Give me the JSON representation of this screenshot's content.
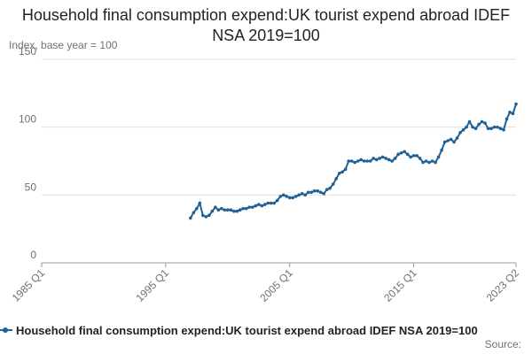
{
  "chart_data": {
    "type": "line",
    "title": "Household final consumption expend:UK tourist expend abroad IDEF NSA 2019=100",
    "y_label": "Index, base year = 100",
    "source": "Source:",
    "categories": [
      "1985 Q1",
      null,
      null,
      null,
      null,
      null,
      null,
      null,
      null,
      null,
      null,
      null,
      null,
      null,
      null,
      null,
      null,
      null,
      null,
      null,
      null,
      null,
      null,
      null,
      null,
      null,
      null,
      null,
      null,
      null,
      null,
      null,
      null,
      null,
      null,
      null,
      null,
      null,
      null,
      null,
      "1995 Q1",
      null,
      null,
      null,
      null,
      null,
      null,
      null,
      null,
      null,
      null,
      null,
      null,
      null,
      null,
      null,
      null,
      null,
      null,
      null,
      null,
      null,
      null,
      null,
      null,
      null,
      null,
      null,
      null,
      null,
      null,
      null,
      null,
      null,
      null,
      null,
      null,
      null,
      null,
      null,
      "2005 Q1",
      null,
      null,
      null,
      null,
      null,
      null,
      null,
      null,
      null,
      null,
      null,
      null,
      null,
      null,
      null,
      null,
      null,
      null,
      null,
      null,
      null,
      null,
      null,
      null,
      null,
      null,
      null,
      null,
      null,
      null,
      null,
      null,
      null,
      null,
      null,
      null,
      null,
      null,
      null,
      "2015 Q1",
      null,
      null,
      null,
      null,
      null,
      null,
      null,
      null,
      null,
      null,
      null,
      null,
      null,
      null,
      null,
      null,
      null,
      null,
      null,
      null,
      null,
      null,
      null,
      null,
      null,
      null,
      null,
      null,
      null,
      null,
      null,
      null,
      "2023 Q2"
    ],
    "series": [
      {
        "name": "Household final consumption expend:UK tourist expend abroad IDEF NSA 2019=100",
        "color": "#206095",
        "values": [
          null,
          null,
          null,
          null,
          null,
          null,
          null,
          null,
          null,
          null,
          null,
          null,
          null,
          null,
          null,
          null,
          null,
          null,
          null,
          null,
          null,
          null,
          null,
          null,
          null,
          null,
          null,
          null,
          null,
          null,
          null,
          null,
          null,
          null,
          null,
          null,
          null,
          null,
          null,
          null,
          null,
          null,
          null,
          null,
          null,
          null,
          null,
          null,
          33,
          37,
          40,
          44,
          35,
          34,
          35,
          38,
          41,
          39,
          40,
          39,
          39,
          39,
          38,
          38,
          39,
          40,
          40,
          41,
          41,
          42,
          43,
          42,
          43,
          44,
          44,
          44,
          46,
          49,
          50,
          49,
          48,
          48,
          49,
          50,
          51,
          50,
          52,
          52,
          53,
          53,
          52,
          51,
          54,
          55,
          58,
          62,
          66,
          67,
          69,
          75,
          75,
          74,
          75,
          76,
          75,
          75,
          75,
          77,
          76,
          77,
          78,
          77,
          76,
          75,
          77,
          80,
          81,
          82,
          80,
          78,
          79,
          79,
          77,
          74,
          75,
          74,
          75,
          74,
          78,
          83,
          89,
          90,
          91,
          89,
          92,
          96,
          98,
          100,
          104,
          100,
          99,
          102,
          104,
          103,
          99,
          99,
          100,
          100,
          99,
          98,
          106,
          111,
          110,
          117
        ]
      }
    ],
    "ylim": [
      0,
      150
    ],
    "yticks": [
      0,
      50,
      100,
      150
    ],
    "grid": true
  }
}
